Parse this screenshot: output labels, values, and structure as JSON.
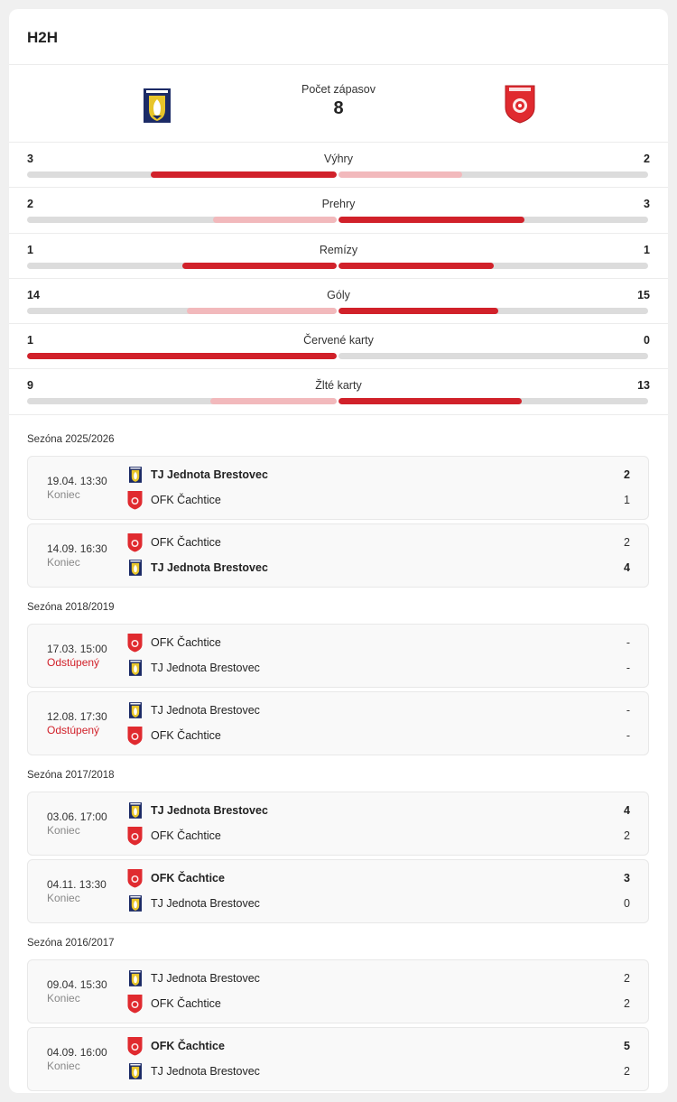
{
  "title": "H2H",
  "summary": {
    "label": "Počet zápasov",
    "count": "8",
    "home_logo": "brestovec-crest-icon",
    "away_logo": "cachtice-crest-icon"
  },
  "colors": {
    "accent": "#d1212a",
    "accent_light": "#f2b9bc",
    "track": "#dcdcdc"
  },
  "stats": [
    {
      "label": "Výhry",
      "home": "3",
      "away": "2"
    },
    {
      "label": "Prehry",
      "home": "2",
      "away": "3"
    },
    {
      "label": "Remízy",
      "home": "1",
      "away": "1"
    },
    {
      "label": "Góly",
      "home": "14",
      "away": "15"
    },
    {
      "label": "Červené karty",
      "home": "1",
      "away": "0"
    },
    {
      "label": "Žlté karty",
      "home": "9",
      "away": "13"
    }
  ],
  "seasons": [
    {
      "label": "Sezóna 2025/2026",
      "matches": [
        {
          "date": "19.04. 13:30",
          "status": "Koniec",
          "t1": "TJ Jednota Brestovec",
          "s1": "2",
          "t2": "OFK Čachtice",
          "s2": "1",
          "winner": 1
        },
        {
          "date": "14.09. 16:30",
          "status": "Koniec",
          "t1": "OFK Čachtice",
          "s1": "2",
          "t2": "TJ Jednota Brestovec",
          "s2": "4",
          "winner": 2
        }
      ]
    },
    {
      "label": "Sezóna 2018/2019",
      "matches": [
        {
          "date": "17.03. 15:00",
          "status": "Odstúpený",
          "t1": "OFK Čachtice",
          "s1": "-",
          "t2": "TJ Jednota Brestovec",
          "s2": "-",
          "winner": 0
        },
        {
          "date": "12.08. 17:30",
          "status": "Odstúpený",
          "t1": "TJ Jednota Brestovec",
          "s1": "-",
          "t2": "OFK Čachtice",
          "s2": "-",
          "winner": 0
        }
      ]
    },
    {
      "label": "Sezóna 2017/2018",
      "matches": [
        {
          "date": "03.06. 17:00",
          "status": "Koniec",
          "t1": "TJ Jednota Brestovec",
          "s1": "4",
          "t2": "OFK Čachtice",
          "s2": "2",
          "winner": 1
        },
        {
          "date": "04.11. 13:30",
          "status": "Koniec",
          "t1": "OFK Čachtice",
          "s1": "3",
          "t2": "TJ Jednota Brestovec",
          "s2": "0",
          "winner": 1
        }
      ]
    },
    {
      "label": "Sezóna 2016/2017",
      "matches": [
        {
          "date": "09.04. 15:30",
          "status": "Koniec",
          "t1": "TJ Jednota Brestovec",
          "s1": "2",
          "t2": "OFK Čachtice",
          "s2": "2",
          "winner": 0
        },
        {
          "date": "04.09. 16:00",
          "status": "Koniec",
          "t1": "OFK Čachtice",
          "s1": "5",
          "t2": "TJ Jednota Brestovec",
          "s2": "2",
          "winner": 1
        }
      ]
    }
  ]
}
